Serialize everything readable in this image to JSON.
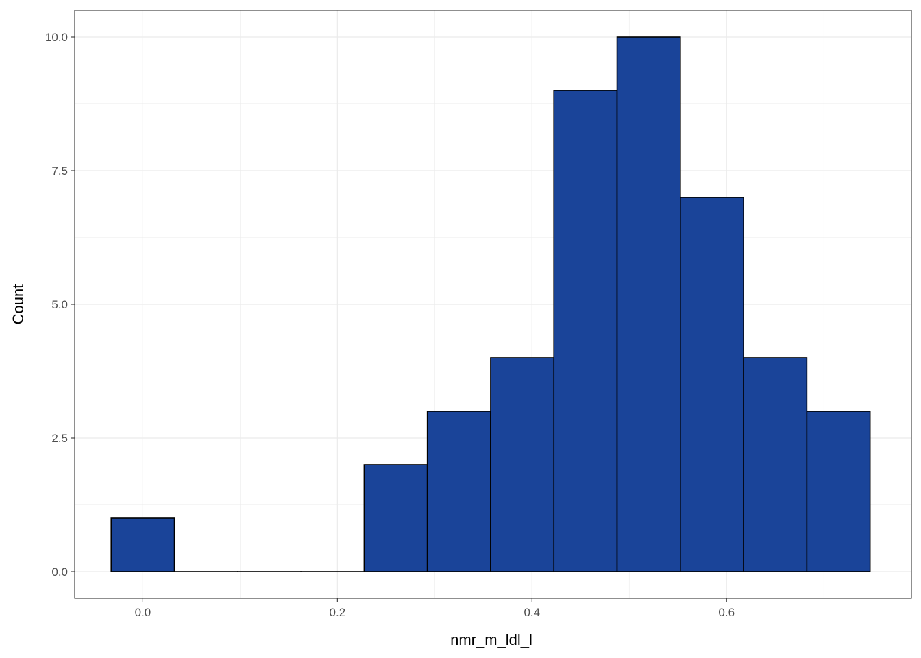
{
  "chart_data": {
    "type": "bar",
    "subtype": "histogram",
    "title": "",
    "xlabel": "nmr_m_ldl_l",
    "ylabel": "Count",
    "xlim": [
      -0.07,
      0.79
    ],
    "ylim": [
      -0.5,
      10.5
    ],
    "x_ticks": [
      0.0,
      0.2,
      0.4,
      0.6
    ],
    "x_tick_labels": [
      "0.0",
      "0.2",
      "0.4",
      "0.6"
    ],
    "y_ticks": [
      0.0,
      2.5,
      5.0,
      7.5,
      10.0
    ],
    "y_tick_labels": [
      "0.0",
      "2.5",
      "5.0",
      "7.5",
      "10.0"
    ],
    "bin_edges": [
      -0.0325,
      0.0325,
      0.0975,
      0.1625,
      0.2275,
      0.2925,
      0.3575,
      0.4225,
      0.4875,
      0.5525,
      0.6175,
      0.6825,
      0.7475
    ],
    "values": [
      1,
      0,
      0,
      0,
      2,
      3,
      4,
      9,
      10,
      7,
      4,
      3
    ],
    "bar_fill": "#1a4499",
    "bar_stroke": "#000000",
    "grid": true,
    "theme": "bw",
    "grid_color": "#ebebeb",
    "panel_border_color": "#333333"
  }
}
